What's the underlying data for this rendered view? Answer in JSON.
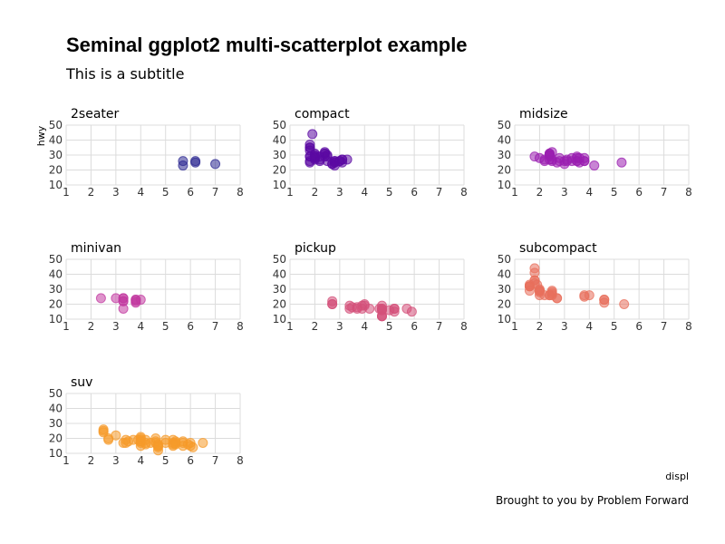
{
  "chart_data": {
    "type": "scatter",
    "title": "Seminal ggplot2 multi-scatterplot example",
    "subtitle": "This is a subtitle",
    "xlabel": "displ",
    "ylabel": "hwy",
    "caption": "Brought to you by Problem Forward",
    "xlim": [
      1,
      8
    ],
    "ylim": [
      10,
      50
    ],
    "xticks": [
      1,
      2,
      3,
      4,
      5,
      6,
      7,
      8
    ],
    "yticks": [
      10,
      20,
      30,
      40,
      50
    ],
    "grid": true,
    "facets": [
      {
        "name": "2seater",
        "color": "#2d2a92",
        "points": [
          [
            5.7,
            26
          ],
          [
            5.7,
            23
          ],
          [
            6.2,
            26
          ],
          [
            6.2,
            25
          ],
          [
            7.0,
            24
          ]
        ]
      },
      {
        "name": "compact",
        "color": "#5b0aa3",
        "points": [
          [
            1.8,
            29
          ],
          [
            1.8,
            29
          ],
          [
            2.0,
            31
          ],
          [
            2.0,
            30
          ],
          [
            2.8,
            26
          ],
          [
            2.8,
            26
          ],
          [
            3.1,
            27
          ],
          [
            1.8,
            26
          ],
          [
            1.8,
            25
          ],
          [
            2.0,
            28
          ],
          [
            2.0,
            27
          ],
          [
            2.8,
            25
          ],
          [
            2.8,
            25
          ],
          [
            3.1,
            25
          ],
          [
            2.2,
            27
          ],
          [
            2.2,
            29
          ],
          [
            2.4,
            31
          ],
          [
            2.4,
            31
          ],
          [
            3.0,
            26
          ],
          [
            3.3,
            27
          ],
          [
            1.8,
            33
          ],
          [
            1.8,
            35
          ],
          [
            1.8,
            37
          ],
          [
            1.8,
            35
          ],
          [
            1.9,
            44
          ],
          [
            2.0,
            29
          ],
          [
            2.5,
            26
          ],
          [
            2.5,
            29
          ],
          [
            2.2,
            26
          ],
          [
            2.4,
            29
          ],
          [
            2.7,
            24
          ],
          [
            2.7,
            24
          ],
          [
            3.0,
            26
          ],
          [
            2.0,
            28
          ],
          [
            2.8,
            23
          ],
          [
            3.1,
            27
          ],
          [
            2.5,
            30
          ],
          [
            2.0,
            29
          ],
          [
            2.4,
            32
          ]
        ]
      },
      {
        "name": "midsize",
        "color": "#9a1fb0",
        "points": [
          [
            1.8,
            29
          ],
          [
            2.0,
            28
          ],
          [
            2.4,
            30
          ],
          [
            2.4,
            31
          ],
          [
            2.5,
            27
          ],
          [
            2.8,
            28
          ],
          [
            3.1,
            27
          ],
          [
            3.5,
            29
          ],
          [
            3.5,
            28
          ],
          [
            3.8,
            26
          ],
          [
            3.8,
            28
          ],
          [
            2.4,
            29
          ],
          [
            2.5,
            26
          ],
          [
            3.0,
            26
          ],
          [
            3.3,
            26
          ],
          [
            3.5,
            26
          ],
          [
            3.6,
            25
          ],
          [
            2.4,
            27
          ],
          [
            2.4,
            30
          ],
          [
            2.5,
            32
          ],
          [
            2.7,
            25
          ],
          [
            3.0,
            24
          ],
          [
            3.3,
            28
          ],
          [
            3.5,
            26
          ],
          [
            3.8,
            26
          ],
          [
            4.2,
            23
          ],
          [
            5.3,
            25
          ],
          [
            2.2,
            27
          ],
          [
            2.4,
            30
          ],
          [
            2.4,
            31
          ],
          [
            3.1,
            26
          ],
          [
            3.6,
            28
          ],
          [
            2.2,
            26
          ],
          [
            2.8,
            26
          ]
        ]
      },
      {
        "name": "minivan",
        "color": "#c23aa0",
        "points": [
          [
            2.4,
            24
          ],
          [
            3.0,
            24
          ],
          [
            3.3,
            22
          ],
          [
            3.3,
            22
          ],
          [
            3.3,
            24
          ],
          [
            3.3,
            24
          ],
          [
            3.3,
            17
          ],
          [
            3.8,
            22
          ],
          [
            3.8,
            21
          ],
          [
            3.8,
            23
          ],
          [
            3.8,
            23
          ],
          [
            4.0,
            23
          ]
        ]
      },
      {
        "name": "pickup",
        "color": "#d4507a",
        "points": [
          [
            2.7,
            20
          ],
          [
            2.7,
            20
          ],
          [
            2.7,
            22
          ],
          [
            3.4,
            17
          ],
          [
            3.4,
            19
          ],
          [
            3.7,
            18
          ],
          [
            3.7,
            17
          ],
          [
            3.9,
            17
          ],
          [
            3.9,
            19
          ],
          [
            4.0,
            19
          ],
          [
            4.0,
            20
          ],
          [
            4.7,
            17
          ],
          [
            4.7,
            12
          ],
          [
            4.7,
            12
          ],
          [
            4.7,
            17
          ],
          [
            4.7,
            16
          ],
          [
            4.7,
            19
          ],
          [
            5.2,
            17
          ],
          [
            5.2,
            15
          ],
          [
            5.2,
            17
          ],
          [
            5.7,
            17
          ],
          [
            5.9,
            15
          ],
          [
            3.5,
            18
          ],
          [
            4.2,
            17
          ],
          [
            4.7,
            12
          ],
          [
            4.7,
            16
          ],
          [
            5.0,
            16
          ],
          [
            4.6,
            17
          ]
        ]
      },
      {
        "name": "subcompact",
        "color": "#e8705c",
        "points": [
          [
            1.6,
            33
          ],
          [
            1.6,
            32
          ],
          [
            1.6,
            32
          ],
          [
            1.6,
            29
          ],
          [
            1.6,
            32
          ],
          [
            1.8,
            34
          ],
          [
            1.8,
            36
          ],
          [
            1.8,
            36
          ],
          [
            1.8,
            41
          ],
          [
            1.8,
            44
          ],
          [
            2.0,
            29
          ],
          [
            2.0,
            26
          ],
          [
            2.0,
            29
          ],
          [
            2.0,
            28
          ],
          [
            2.0,
            29
          ],
          [
            2.4,
            26
          ],
          [
            2.4,
            26
          ],
          [
            2.5,
            26
          ],
          [
            2.5,
            27
          ],
          [
            2.7,
            24
          ],
          [
            2.7,
            24
          ],
          [
            3.8,
            26
          ],
          [
            3.8,
            25
          ],
          [
            4.0,
            26
          ],
          [
            4.6,
            23
          ],
          [
            4.6,
            21
          ],
          [
            4.6,
            23
          ],
          [
            5.4,
            20
          ],
          [
            2.2,
            26
          ],
          [
            2.5,
            29
          ],
          [
            2.5,
            28
          ],
          [
            2.0,
            30
          ],
          [
            1.9,
            33
          ]
        ]
      },
      {
        "name": "suv",
        "color": "#f59a2a",
        "points": [
          [
            2.5,
            26
          ],
          [
            2.5,
            25
          ],
          [
            2.7,
            20
          ],
          [
            2.7,
            19
          ],
          [
            3.0,
            22
          ],
          [
            3.3,
            17
          ],
          [
            3.4,
            17
          ],
          [
            3.4,
            19
          ],
          [
            3.7,
            19
          ],
          [
            3.9,
            19
          ],
          [
            4.0,
            17
          ],
          [
            4.0,
            20
          ],
          [
            4.0,
            15
          ],
          [
            4.0,
            19
          ],
          [
            4.0,
            18
          ],
          [
            4.2,
            17
          ],
          [
            4.2,
            16
          ],
          [
            4.4,
            17
          ],
          [
            4.6,
            18
          ],
          [
            4.6,
            17
          ],
          [
            4.7,
            15
          ],
          [
            4.7,
            14
          ],
          [
            4.7,
            12
          ],
          [
            4.7,
            15
          ],
          [
            5.0,
            17
          ],
          [
            5.3,
            19
          ],
          [
            5.3,
            15
          ],
          [
            5.3,
            17
          ],
          [
            5.4,
            18
          ],
          [
            5.4,
            17
          ],
          [
            5.4,
            16
          ],
          [
            5.7,
            17
          ],
          [
            5.7,
            18
          ],
          [
            6.0,
            17
          ],
          [
            6.1,
            14
          ],
          [
            6.5,
            17
          ],
          [
            4.6,
            20
          ],
          [
            5.0,
            19
          ],
          [
            5.9,
            16
          ],
          [
            2.5,
            24
          ],
          [
            4.0,
            21
          ],
          [
            4.0,
            18
          ],
          [
            3.5,
            18
          ],
          [
            4.2,
            19
          ],
          [
            4.7,
            16
          ],
          [
            5.3,
            16
          ],
          [
            5.7,
            15
          ],
          [
            6.0,
            15
          ]
        ]
      }
    ]
  }
}
